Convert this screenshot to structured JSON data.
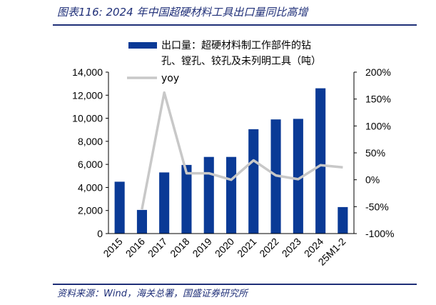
{
  "header": {
    "title": "图表116:  2024 年中国超硬材料工具出口量同比高增"
  },
  "footer": {
    "source": "资料来源：Wind，海关总署，国盛证券研究所"
  },
  "colors": {
    "bar": "#0a3a96",
    "line": "#c8c8c8",
    "rule": "#1f2f78",
    "text_accent": "#1f2f78"
  },
  "chart_data": {
    "type": "bar",
    "categories": [
      "2015",
      "2016",
      "2017",
      "2018",
      "2019",
      "2020",
      "2021",
      "2022",
      "2023",
      "2024",
      "25M1-2"
    ],
    "series": [
      {
        "name": "出口量：超硬材料制工作部件的钻孔、镗孔、铰孔及未列明工具（吨）",
        "legend_lines": [
          "出口量：超硬材料制工作部件的钻",
          "孔、镗孔、铰孔及未列明工具（吨）"
        ],
        "type": "bar",
        "axis": "left",
        "values": [
          4500,
          2050,
          5300,
          5950,
          6650,
          6650,
          9050,
          9900,
          9950,
          12600,
          2300
        ]
      },
      {
        "name": "yoy",
        "legend_lines": [
          "yoy"
        ],
        "type": "line",
        "axis": "right",
        "unit": "%",
        "values": [
          null,
          -55,
          162,
          12,
          12,
          0,
          36,
          8,
          1,
          27,
          23
        ]
      }
    ],
    "y_left": {
      "min": 0,
      "max": 14000,
      "step": 2000,
      "ticks": [
        "0",
        "2,000",
        "4,000",
        "6,000",
        "8,000",
        "10,000",
        "12,000",
        "14,000"
      ]
    },
    "y_right": {
      "min": -100,
      "max": 200,
      "step": 50,
      "ticks": [
        "-100%",
        "-50%",
        "0%",
        "50%",
        "100%",
        "150%",
        "200%"
      ]
    },
    "grid": false,
    "legend_position": "top-left"
  }
}
